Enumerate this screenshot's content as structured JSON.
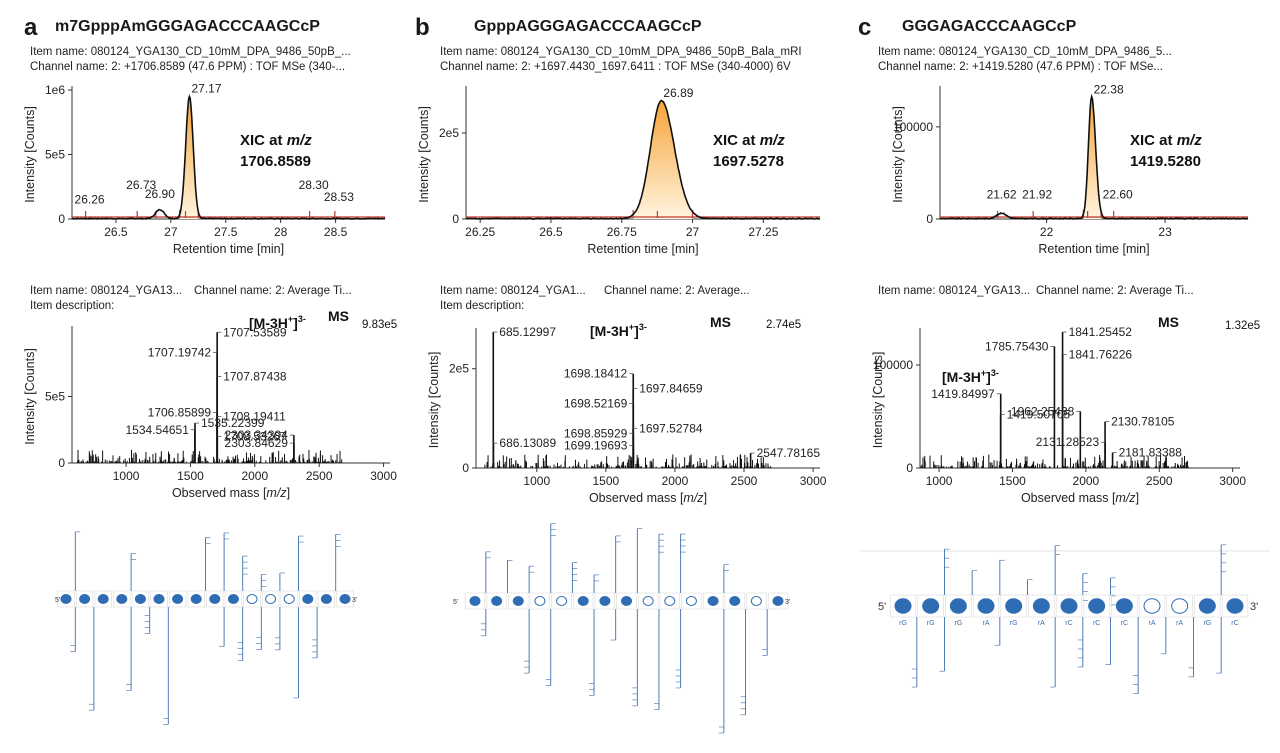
{
  "panels": [
    {
      "letter": "a",
      "title": "m7GpppAmGGGAGACCCAAGCcP",
      "xic_item_name": "Item name: 080124_YGA130_CD_10mM_DPA_9486_50pB_...",
      "xic_channel_name": "Channel name: 2: +1706.8589 (47.6 PPM) : TOF MSe (340-...",
      "ms_item_name": "Item name: 080124_YGA13...",
      "ms_channel_name": "Channel name: 2: Average Ti...",
      "ms_item_description": "Item description:",
      "xic_annotation_prefix": "XIC at",
      "xic_annotation_mz_label": "m/z",
      "xic_annotation_value": "1706.8589",
      "ms_label": "MS",
      "ion_label": "[M-3H",
      "ion_sup_plus": "+",
      "ion_close": "]",
      "ion_sup_charge": "3-",
      "ms_max_intensity": "9.83e5",
      "sequence_5": "5'",
      "sequence_3": "3'"
    },
    {
      "letter": "b",
      "title": "GpppAGGGAGACCCAAGCcP",
      "xic_item_name": "Item name: 080124_YGA130_CD_10mM_DPA_9486_50pB_Bala_mRI",
      "xic_channel_name": "Channel name: 2: +1697.4430_1697.6411 : TOF MSe (340-4000) 6V",
      "ms_item_name": "Item name: 080124_YGA1...",
      "ms_channel_name": "Channel name: 2: Average...",
      "ms_item_description": "Item description:",
      "xic_annotation_prefix": "XIC at",
      "xic_annotation_mz_label": "m/z",
      "xic_annotation_value": "1697.5278",
      "ms_label": "MS",
      "ion_label": "[M-3H",
      "ion_sup_plus": "+",
      "ion_close": "]",
      "ion_sup_charge": "3-",
      "ms_max_intensity": "2.74e5",
      "sequence_5": "5'",
      "sequence_3": "3'"
    },
    {
      "letter": "c",
      "title": "GGGAGACCCAAGCcP",
      "xic_item_name": "Item name: 080124_YGA130_CD_10mM_DPA_9486_5...",
      "xic_channel_name": "Channel name: 2: +1419.5280 (47.6 PPM) : TOF MSe...",
      "ms_item_name": "Item name: 080124_YGA13...",
      "ms_channel_name": "Channel name: 2: Average Ti...",
      "ms_item_description": "Item description:",
      "xic_annotation_prefix": "XIC at",
      "xic_annotation_mz_label": "m/z",
      "xic_annotation_value": "1419.5280",
      "ms_label": "MS",
      "ion_label": "[M-3H",
      "ion_sup_plus": "+",
      "ion_close": "]",
      "ion_sup_charge": "3-",
      "ms_max_intensity": "1.32e5",
      "sequence_5": "5'",
      "sequence_3": "3'",
      "residues": [
        "rG",
        "rG",
        "rG",
        "rA",
        "rG",
        "rA",
        "rC",
        "rC",
        "rC",
        "rA",
        "rA",
        "rG",
        "rC"
      ]
    }
  ],
  "colors": {
    "trace": "#111111",
    "baseline_red": "#c0392b",
    "peak_fill_top": "#f7a437",
    "peak_fill_bottom": "#fff4e0",
    "nucleotide_blue": "#2e6db4",
    "fragment_blue": "#3a6fb0"
  },
  "chart_data": [
    {
      "panel": "a",
      "type": "line",
      "xlabel": "Retention time [min]",
      "ylabel": "Intensity [Counts]",
      "xlim": [
        26.1,
        28.95
      ],
      "ylim": [
        0,
        1000000
      ],
      "x_ticks": [
        26.5,
        27,
        27.5,
        28,
        28.5
      ],
      "x_tick_labels": [
        "26.5",
        "27",
        "27.5",
        "28",
        "28.5"
      ],
      "y_ticks": [
        0,
        500000,
        1000000
      ],
      "y_tick_labels": [
        "0",
        "5e5",
        "1e6"
      ],
      "peak": {
        "apex": 27.17,
        "height": 950000,
        "left": 27.08,
        "right": 27.25
      },
      "minor_peaks": [
        {
          "x": 26.9,
          "height": 70000
        }
      ],
      "peak_labels": [
        {
          "x": 26.26,
          "label": "26.26",
          "y": 90000
        },
        {
          "x": 26.73,
          "label": "26.73",
          "y": 200000
        },
        {
          "x": 26.9,
          "label": "26.90",
          "y": 130000
        },
        {
          "x": 27.17,
          "label": "27.17",
          "y": 950000
        },
        {
          "x": 28.3,
          "label": "28.30",
          "y": 200000
        },
        {
          "x": 28.53,
          "label": "28.53",
          "y": 110000
        }
      ]
    },
    {
      "panel": "b",
      "type": "line",
      "xlabel": "Retention time [min]",
      "ylabel": "Intensity [Counts]",
      "xlim": [
        26.2,
        27.45
      ],
      "ylim": [
        0,
        300000
      ],
      "x_ticks": [
        26.25,
        26.5,
        26.75,
        27,
        27.25
      ],
      "x_tick_labels": [
        "26.25",
        "26.5",
        "26.75",
        "27",
        "27.25"
      ],
      "y_ticks": [
        0,
        200000
      ],
      "y_tick_labels": [
        "0",
        "2e5"
      ],
      "peak": {
        "apex": 26.89,
        "height": 274000,
        "left": 26.79,
        "right": 27.0
      },
      "minor_peaks": [],
      "peak_labels": [
        {
          "x": 26.89,
          "label": "26.89",
          "y": 274000
        }
      ]
    },
    {
      "panel": "c",
      "type": "line",
      "xlabel": "Retention time [min]",
      "ylabel": "Intensity [Counts]",
      "xlim": [
        21.1,
        23.7
      ],
      "ylim": [
        0,
        140000
      ],
      "x_ticks": [
        22,
        23
      ],
      "x_tick_labels": [
        "22",
        "23"
      ],
      "y_ticks": [
        0,
        100000
      ],
      "y_tick_labels": [
        "0",
        "100000"
      ],
      "peak": {
        "apex": 22.38,
        "height": 132000,
        "left": 22.31,
        "right": 22.46
      },
      "minor_peaks": [
        {
          "x": 21.62,
          "height": 6000
        }
      ],
      "peak_labels": [
        {
          "x": 21.62,
          "label": "21.62",
          "y": 18000
        },
        {
          "x": 21.92,
          "label": "21.92",
          "y": 18000
        },
        {
          "x": 22.38,
          "label": "22.38",
          "y": 132000
        },
        {
          "x": 22.6,
          "label": "22.60",
          "y": 18000
        }
      ]
    },
    {
      "panel": "a",
      "type": "bar",
      "xlabel": "Observed mass [m/z]",
      "ylabel": "Intensity [Counts]",
      "xlim": [
        580,
        3050
      ],
      "ylim": [
        0,
        1000000
      ],
      "x_ticks": [
        1000,
        1500,
        2000,
        2500,
        3000
      ],
      "x_tick_labels": [
        "1000",
        "1500",
        "2000",
        "2500",
        "3000"
      ],
      "y_ticks": [
        0,
        500000
      ],
      "y_tick_labels": [
        "0",
        "5e5"
      ],
      "labeled_peaks": [
        {
          "mz": 1707.53589,
          "intensity": 983000,
          "label": "1707.53589"
        },
        {
          "mz": 1707.19742,
          "intensity": 830000,
          "label": "1707.19742"
        },
        {
          "mz": 1707.87438,
          "intensity": 650000,
          "label": "1707.87438"
        },
        {
          "mz": 1706.85899,
          "intensity": 380000,
          "label": "1706.85899"
        },
        {
          "mz": 1708.19411,
          "intensity": 350000,
          "label": "1708.19411"
        },
        {
          "mz": 2303.34394,
          "intensity": 210000,
          "label": "2303.34394"
        },
        {
          "mz": 1535.22399,
          "intensity": 300000,
          "label": "1535.22399"
        },
        {
          "mz": 1534.54651,
          "intensity": 250000,
          "label": "1534.54651"
        },
        {
          "mz": 1708.53267,
          "intensity": 200000,
          "label": "1708.53267"
        },
        {
          "mz": 2303.84629,
          "intensity": 150000,
          "label": "2303.84629"
        }
      ]
    },
    {
      "panel": "b",
      "type": "bar",
      "xlabel": "Observed mass [m/z]",
      "ylabel": "Intensity [Counts]",
      "xlim": [
        560,
        3050
      ],
      "ylim": [
        0,
        274000
      ],
      "x_ticks": [
        1000,
        1500,
        2000,
        2500,
        3000
      ],
      "x_tick_labels": [
        "1000",
        "1500",
        "2000",
        "2500",
        "3000"
      ],
      "y_ticks": [
        0,
        200000
      ],
      "y_tick_labels": [
        "0",
        "2e5"
      ],
      "labeled_peaks": [
        {
          "mz": 685.12997,
          "intensity": 274000,
          "label": "685.12997"
        },
        {
          "mz": 1698.18412,
          "intensity": 190000,
          "label": "1698.18412"
        },
        {
          "mz": 1697.84659,
          "intensity": 160000,
          "label": "1697.84659"
        },
        {
          "mz": 1698.52169,
          "intensity": 130000,
          "label": "1698.52169"
        },
        {
          "mz": 1697.52784,
          "intensity": 80000,
          "label": "1697.52784"
        },
        {
          "mz": 1698.85929,
          "intensity": 70000,
          "label": "1698.85929"
        },
        {
          "mz": 686.13089,
          "intensity": 50000,
          "label": "686.13089"
        },
        {
          "mz": 1699.19693,
          "intensity": 45000,
          "label": "1699.19693"
        },
        {
          "mz": 2547.78165,
          "intensity": 30000,
          "label": "2547.78165"
        }
      ]
    },
    {
      "panel": "c",
      "type": "bar",
      "xlabel": "Observed mass [m/z]",
      "ylabel": "Intensity [Counts]",
      "xlim": [
        870,
        3050
      ],
      "ylim": [
        0,
        132000
      ],
      "x_ticks": [
        1000,
        1500,
        2000,
        2500,
        3000
      ],
      "x_tick_labels": [
        "1000",
        "1500",
        "2000",
        "2500",
        "3000"
      ],
      "y_ticks": [
        0,
        100000
      ],
      "y_tick_labels": [
        "0",
        "100000"
      ],
      "labeled_peaks": [
        {
          "mz": 1841.25452,
          "intensity": 132000,
          "label": "1841.25452"
        },
        {
          "mz": 1785.7543,
          "intensity": 118000,
          "label": "1785.75430"
        },
        {
          "mz": 1841.76226,
          "intensity": 110000,
          "label": "1841.76226"
        },
        {
          "mz": 1419.84997,
          "intensity": 72000,
          "label": "1419.84997"
        },
        {
          "mz": 1419.50705,
          "intensity": 52000,
          "label": "1419.50705"
        },
        {
          "mz": 1962.25438,
          "intensity": 55000,
          "label": "1962.25438"
        },
        {
          "mz": 2130.78105,
          "intensity": 45000,
          "label": "2130.78105"
        },
        {
          "mz": 2131.28523,
          "intensity": 25000,
          "label": "2131.28523"
        },
        {
          "mz": 2181.83388,
          "intensity": 15000,
          "label": "2181.83388"
        }
      ]
    }
  ]
}
